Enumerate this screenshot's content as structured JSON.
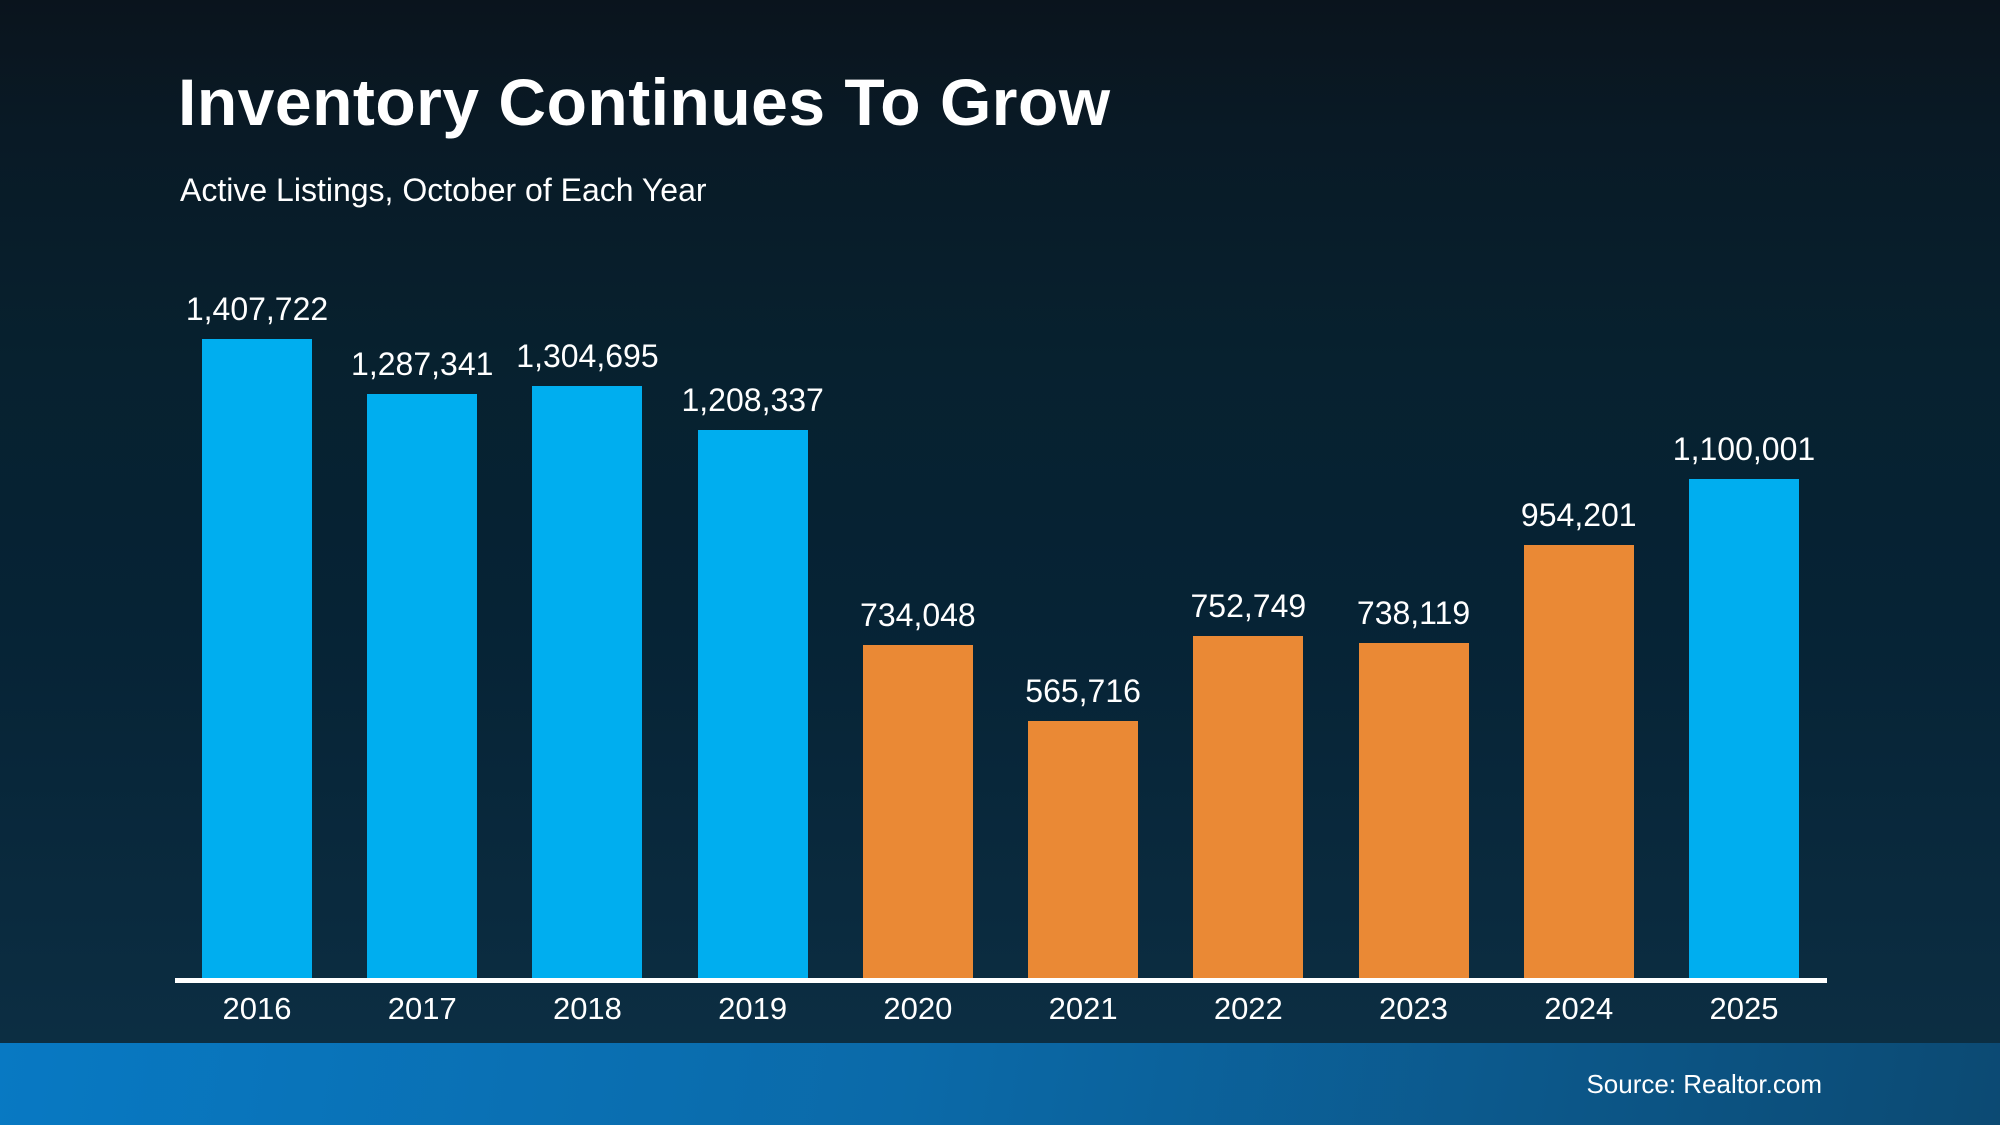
{
  "slide": {
    "title": "Inventory Continues To Grow",
    "subtitle": "Active Listings, October of Each Year",
    "source": "Source: Realtor.com"
  },
  "colors": {
    "bar_blue": "#00AEEF",
    "bar_orange": "#EA8935",
    "axis": "#FFFFFF",
    "text": "#FFFFFF",
    "background_top": "#0A141D",
    "background_bottom": "#0D3045",
    "footer_left": "#0879C3",
    "footer_mid": "#0B6AA9",
    "footer_right": "#0C4A73"
  },
  "chart_data": {
    "type": "bar",
    "title": "Inventory Continues To Grow",
    "subtitle": "Active Listings, October of Each Year",
    "categories": [
      "2016",
      "2017",
      "2018",
      "2019",
      "2020",
      "2021",
      "2022",
      "2023",
      "2024",
      "2025"
    ],
    "values": [
      1407722,
      1287341,
      1304695,
      1208337,
      734048,
      565716,
      752749,
      738119,
      954201,
      1100001
    ],
    "value_labels": [
      "1,407,722",
      "1,287,341",
      "1,304,695",
      "1,208,337",
      "734,048",
      "565,716",
      "752,749",
      "738,119",
      "954,201",
      "1,100,001"
    ],
    "bar_colors": [
      "blue",
      "blue",
      "blue",
      "blue",
      "orange",
      "orange",
      "orange",
      "orange",
      "orange",
      "blue"
    ],
    "xlabel": "",
    "ylabel": "",
    "ylim": [
      0,
      1450000
    ],
    "grid": false,
    "legend": false,
    "data_labels": true,
    "source": "Source: Realtor.com"
  }
}
